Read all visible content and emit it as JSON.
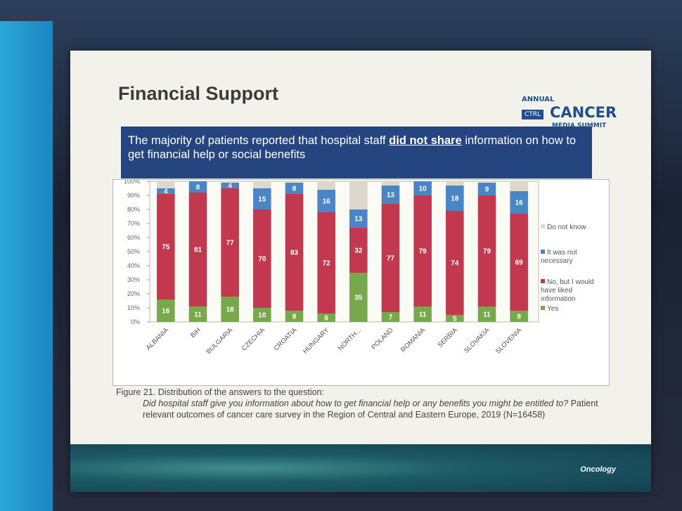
{
  "slide": {
    "title": "Financial Support",
    "logo": {
      "annual": "ANNUAL",
      "ctrl": "CTRL",
      "cancer": "CANCER",
      "summit": "MEDIA SUMMIT"
    },
    "banner": {
      "before": "The majority of patients reported that hospital staff",
      "emphasis": "did not share",
      "after": "information on how to get financial help or social benefits"
    },
    "caption": {
      "figure": "Figure 21. Distribution of the answers to the question:",
      "question": "Did hospital staff give you information about how to get financial help or any benefits you might be entitled to?",
      "source": "Patient relevant outcomes of cancer care survey in the Region of Central and Eastern Europe, 2019 (N=16458)"
    },
    "footer": "Oncology"
  },
  "chart_data": {
    "type": "stacked_bar",
    "categories": [
      "ALBANIA",
      "BiH",
      "BULGARIA",
      "CZECHIA",
      "CROATIA",
      "HUNGARY",
      "NORTH...",
      "POLAND",
      "ROMANIA",
      "SERBIA",
      "SLOVAKIA",
      "SLOVENIA"
    ],
    "series": [
      {
        "name": "Yes",
        "color": "#77a94a",
        "show_labels": true,
        "values": [
          16,
          11,
          18,
          10,
          8,
          6,
          35,
          7,
          11,
          5,
          11,
          8
        ]
      },
      {
        "name": "No, but I would have liked information",
        "color": "#c1384f",
        "show_labels": true,
        "values": [
          75,
          81,
          77,
          70,
          83,
          72,
          32,
          77,
          79,
          74,
          79,
          69
        ]
      },
      {
        "name": "It was not necessary",
        "color": "#4a86c6",
        "show_labels": true,
        "values": [
          4,
          8,
          4,
          15,
          8,
          16,
          13,
          13,
          10,
          18,
          9,
          16
        ]
      },
      {
        "name": "Do not know",
        "color": "#dcd8cd",
        "show_labels": false,
        "values": [
          5,
          0,
          1,
          5,
          1,
          6,
          20,
          3,
          0,
          3,
          1,
          7
        ]
      }
    ],
    "ylim": [
      0,
      100
    ],
    "yticks": [
      {
        "value": 0,
        "label": "0%"
      },
      {
        "value": 10,
        "label": "10%"
      },
      {
        "value": 20,
        "label": "20%"
      },
      {
        "value": 30,
        "label": "30%"
      },
      {
        "value": 40,
        "label": "40%"
      },
      {
        "value": 50,
        "label": "50%"
      },
      {
        "value": 60,
        "label": "60%"
      },
      {
        "value": 70,
        "label": "70%"
      },
      {
        "value": 80,
        "label": "80%"
      },
      {
        "value": 90,
        "label": "90%"
      },
      {
        "value": 100,
        "label": "100%"
      }
    ],
    "grid": false,
    "legend": "right"
  }
}
